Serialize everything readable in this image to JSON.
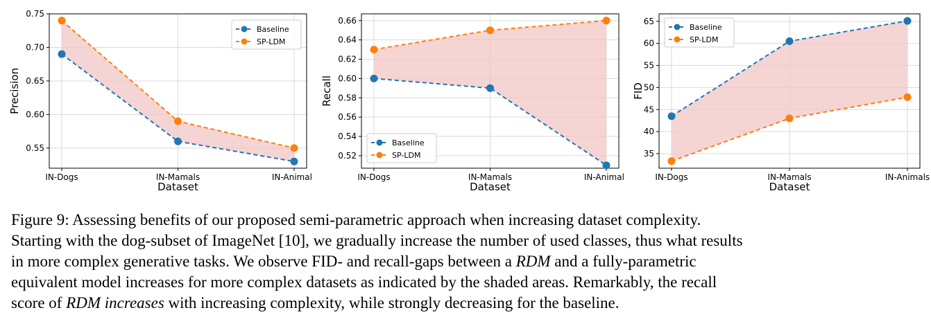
{
  "colors": {
    "baseline": "#1f77b4",
    "sp_ldm": "#ff7f0e",
    "shade": "#f2c6c6",
    "grid": "#d9d9d9"
  },
  "chart_data": [
    {
      "type": "line",
      "categories": [
        "IN-Dogs",
        "IN-Mamals",
        "IN-Animals"
      ],
      "series": [
        {
          "name": "Baseline",
          "values": [
            0.69,
            0.56,
            0.53
          ]
        },
        {
          "name": "SP-LDM",
          "values": [
            0.74,
            0.59,
            0.55
          ]
        }
      ],
      "title": "",
      "xlabel": "Dataset",
      "ylabel": "Precision",
      "ylim": [
        0.52,
        0.75
      ],
      "yticks": [
        0.55,
        0.6,
        0.65,
        0.7,
        0.75
      ],
      "ytick_labels": [
        "0.55",
        "0.60",
        "0.65",
        "0.70",
        "0.75"
      ],
      "shaded_between_series": true,
      "grid": true,
      "legend": "top-right"
    },
    {
      "type": "line",
      "categories": [
        "IN-Dogs",
        "IN-Mamals",
        "IN-Animals"
      ],
      "series": [
        {
          "name": "Baseline",
          "values": [
            0.6,
            0.59,
            0.51
          ]
        },
        {
          "name": "SP-LDM",
          "values": [
            0.63,
            0.65,
            0.66
          ]
        }
      ],
      "title": "",
      "xlabel": "Dataset",
      "ylabel": "Recall",
      "ylim": [
        0.507,
        0.667
      ],
      "yticks": [
        0.52,
        0.54,
        0.56,
        0.58,
        0.6,
        0.62,
        0.64,
        0.66
      ],
      "ytick_labels": [
        "0.52",
        "0.54",
        "0.56",
        "0.58",
        "0.60",
        "0.62",
        "0.64",
        "0.66"
      ],
      "shaded_between_series": true,
      "grid": true,
      "legend": "bottom-left"
    },
    {
      "type": "line",
      "categories": [
        "IN-Dogs",
        "IN-Mamals",
        "IN-Animals"
      ],
      "series": [
        {
          "name": "Baseline",
          "values": [
            43.5,
            60.5,
            65.1
          ]
        },
        {
          "name": "SP-LDM",
          "values": [
            33.3,
            43.0,
            47.8
          ]
        }
      ],
      "title": "",
      "xlabel": "Dataset",
      "ylabel": "FID",
      "ylim": [
        31.7,
        66.7
      ],
      "yticks": [
        35,
        40,
        45,
        50,
        55,
        60,
        65
      ],
      "ytick_labels": [
        "35",
        "40",
        "45",
        "50",
        "55",
        "60",
        "65"
      ],
      "shaded_between_series": true,
      "grid": true,
      "legend": "top-left"
    }
  ],
  "caption": {
    "l1": "Figure 9:  Assessing benefits of our proposed semi-parametric approach when increasing dataset complexity.",
    "l2": "Starting with the dog-subset of ImageNet [10], we gradually increase the number of used classes, thus what results",
    "l3": "in more complex generative tasks. We observe FID- and recall-gaps between a ",
    "l3_em": "RDM",
    "l3_rest": " and a fully-parametric",
    "l4": "equivalent model increases for more complex datasets as indicated by the shaded areas. Remarkably, the recall",
    "l5_a": "score of ",
    "l5_em": "RDM increases",
    "l5_rest": " with increasing complexity, while strongly decreasing for the baseline."
  }
}
